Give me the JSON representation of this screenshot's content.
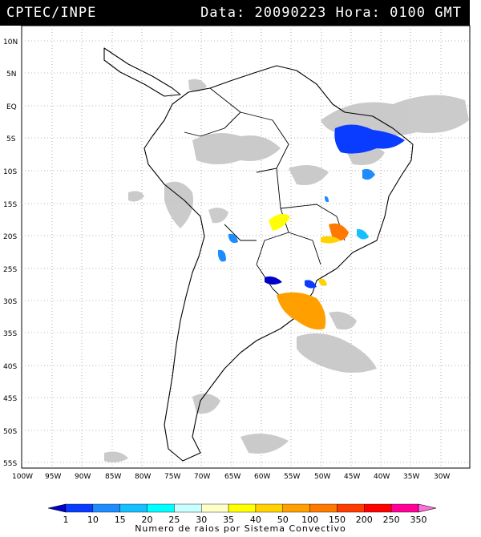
{
  "header": {
    "source": "CPTEC/INPE",
    "data_label": "Data:",
    "date": "20090223",
    "hora_label": "Hora:",
    "time": "0100",
    "timezone": "GMT"
  },
  "axes": {
    "lat_labels": [
      "10N",
      "5N",
      "EQ",
      "5S",
      "10S",
      "15S",
      "20S",
      "25S",
      "30S",
      "35S",
      "40S",
      "45S",
      "50S",
      "55S"
    ],
    "lon_labels": [
      "100W",
      "95W",
      "90W",
      "85W",
      "80W",
      "75W",
      "70W",
      "65W",
      "60W",
      "55W",
      "50W",
      "45W",
      "40W",
      "35W",
      "30W"
    ]
  },
  "legend": {
    "values": [
      "1",
      "10",
      "15",
      "20",
      "25",
      "30",
      "35",
      "40",
      "50",
      "100",
      "150",
      "200",
      "250",
      "350"
    ],
    "colors": [
      "#0000c8",
      "#0a3cff",
      "#1e8cff",
      "#16c0ff",
      "#00ffff",
      "#c8ffff",
      "#ffffc8",
      "#ffff00",
      "#ffd200",
      "#ffa000",
      "#ff7800",
      "#ff3c00",
      "#ff0000",
      "#ff0096",
      "#ff6edc"
    ],
    "caption": "Numero de raios por Sistema Convectivo"
  },
  "colors": {
    "cloud": "#c8c8c8",
    "land": "#ffffff",
    "coast": "#000000",
    "grid": "#9a9a9a"
  }
}
